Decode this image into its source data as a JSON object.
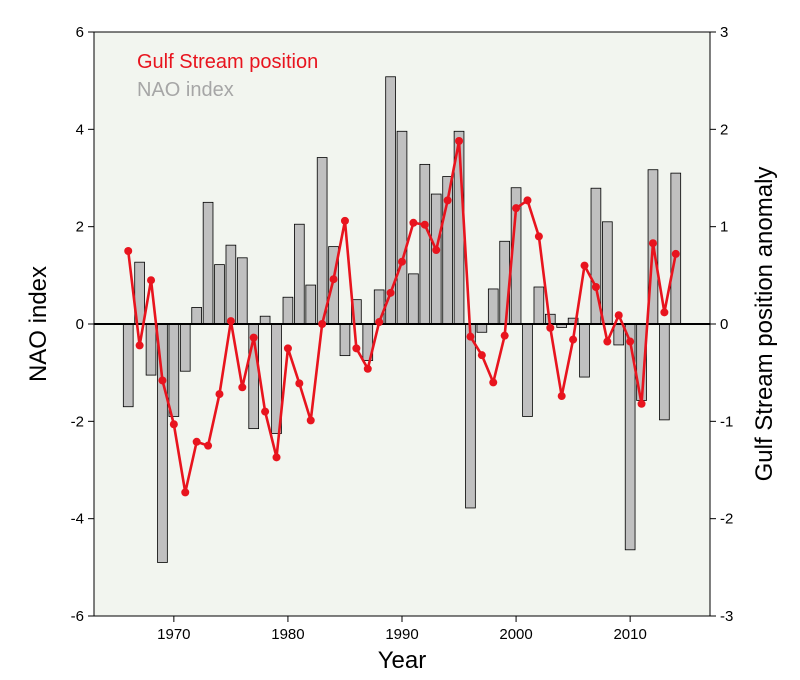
{
  "chart_data": {
    "type": "bar",
    "xlabel": "Year",
    "ylabel_left": "NAO index",
    "ylabel_right": "Gulf Stream position anomaly",
    "xlim": [
      1963,
      2017
    ],
    "ylim_left": [
      -6,
      6
    ],
    "ylim_right": [
      -3,
      3
    ],
    "x_ticks": [
      1970,
      1980,
      1990,
      2000,
      2010
    ],
    "y_ticks_left": [
      -6,
      -4,
      -2,
      0,
      2,
      4,
      6
    ],
    "y_ticks_right": [
      -3,
      -2,
      -1,
      0,
      1,
      2,
      3
    ],
    "grid": false,
    "legend_position": "top-left",
    "colors": {
      "background": "#f2f5ef",
      "bars": "#c0c0c0",
      "line": "#e8141e",
      "zero_line": "#000000"
    },
    "series": [
      {
        "name": "NAO index",
        "type": "bar",
        "axis": "left",
        "x": [
          1966,
          1967,
          1968,
          1969,
          1970,
          1971,
          1972,
          1973,
          1974,
          1975,
          1976,
          1977,
          1978,
          1979,
          1980,
          1981,
          1982,
          1983,
          1984,
          1985,
          1986,
          1987,
          1988,
          1989,
          1990,
          1991,
          1992,
          1993,
          1994,
          1995,
          1996,
          1997,
          1998,
          1999,
          2000,
          2001,
          2002,
          2003,
          2004,
          2005,
          2006,
          2007,
          2008,
          2009,
          2010,
          2011,
          2012,
          2013,
          2014
        ],
        "values": [
          -1.7,
          1.27,
          -1.05,
          -4.9,
          -1.9,
          -0.97,
          0.34,
          2.5,
          1.22,
          1.62,
          1.36,
          -2.15,
          0.16,
          -2.25,
          0.55,
          2.05,
          0.8,
          3.42,
          1.59,
          -0.65,
          0.5,
          -0.75,
          0.7,
          5.08,
          3.96,
          1.03,
          3.28,
          2.67,
          3.03,
          3.96,
          -3.78,
          -0.17,
          0.72,
          1.7,
          2.8,
          -1.9,
          0.76,
          0.2,
          -0.07,
          0.12,
          -1.09,
          2.79,
          2.1,
          -0.43,
          -4.64,
          -1.57,
          3.17,
          -1.97,
          3.1
        ]
      },
      {
        "name": "Gulf Stream position",
        "type": "line",
        "axis": "right",
        "x": [
          1966,
          1967,
          1968,
          1969,
          1970,
          1971,
          1972,
          1973,
          1974,
          1975,
          1976,
          1977,
          1978,
          1979,
          1980,
          1981,
          1982,
          1983,
          1984,
          1985,
          1986,
          1987,
          1988,
          1989,
          1990,
          1991,
          1992,
          1993,
          1994,
          1995,
          1996,
          1997,
          1998,
          1999,
          2000,
          2001,
          2002,
          2003,
          2004,
          2005,
          2006,
          2007,
          2008,
          2009,
          2010,
          2011,
          2012,
          2013,
          2014
        ],
        "values": [
          0.75,
          -0.22,
          0.45,
          -0.58,
          -1.03,
          -1.73,
          -1.21,
          -1.25,
          -0.72,
          0.03,
          -0.65,
          -0.14,
          -0.9,
          -1.37,
          -0.25,
          -0.61,
          -0.99,
          0.0,
          0.46,
          1.06,
          -0.25,
          -0.46,
          0.02,
          0.32,
          0.64,
          1.04,
          1.02,
          0.76,
          1.27,
          1.88,
          -0.13,
          -0.32,
          -0.6,
          -0.12,
          1.19,
          1.27,
          0.9,
          -0.04,
          -0.74,
          -0.16,
          0.6,
          0.38,
          -0.18,
          0.09,
          -0.18,
          -0.82,
          0.83,
          0.12,
          0.72
        ]
      }
    ]
  }
}
